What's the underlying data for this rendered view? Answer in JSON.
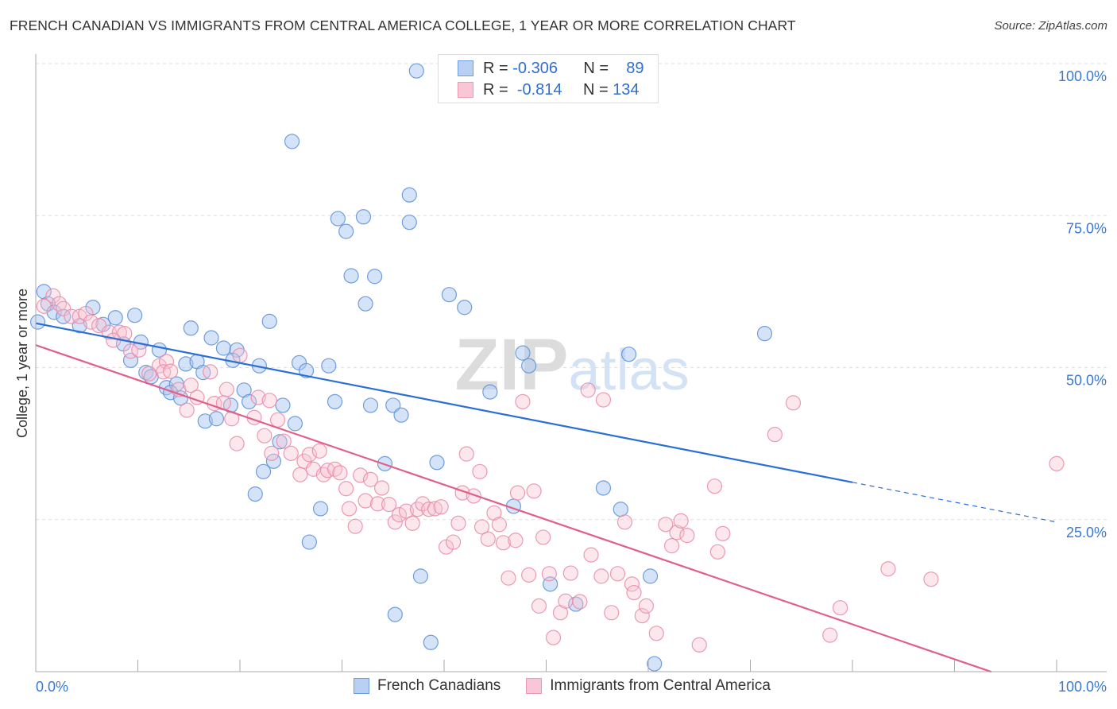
{
  "chart_data": {
    "type": "scatter",
    "title": "FRENCH CANADIAN VS IMMIGRANTS FROM CENTRAL AMERICA COLLEGE, 1 YEAR OR MORE CORRELATION CHART",
    "source": "Source: ZipAtlas.com",
    "xlabel": "",
    "ylabel": "College, 1 year or more",
    "xlim": [
      0,
      100
    ],
    "ylim": [
      0,
      100
    ],
    "x_tick_labels": [
      "0.0%",
      "100.0%"
    ],
    "y_ticks": [
      25,
      50,
      75,
      100
    ],
    "y_tick_labels": [
      "25.0%",
      "50.0%",
      "75.0%",
      "100.0%"
    ],
    "grid": true,
    "watermark": "ZIPatlas",
    "legend": {
      "placement": "top-center",
      "rows": [
        {
          "r_label": "R =",
          "r_value": "-0.306",
          "n_label": "N =",
          "n_value": "89"
        },
        {
          "r_label": "R =",
          "r_value": "-0.814",
          "n_label": "N =",
          "n_value": "134"
        }
      ]
    },
    "series": [
      {
        "name": "French Canadians",
        "color": "#5b8ed8",
        "fill": "#a9c7f0",
        "trend": {
          "intercept": 57.3,
          "slope": -0.327,
          "solid_to_x": 80,
          "dashed_to_x": 100,
          "color": "#2a6fd6"
        },
        "points": [
          [
            37.3,
            98.8
          ],
          [
            49.9,
            99.5
          ],
          [
            25.1,
            87.2
          ],
          [
            36.6,
            78.4
          ],
          [
            29.6,
            74.5
          ],
          [
            32.1,
            74.8
          ],
          [
            30.4,
            72.4
          ],
          [
            36.6,
            73.9
          ],
          [
            30.9,
            65.1
          ],
          [
            33.2,
            65.0
          ],
          [
            32.3,
            60.5
          ],
          [
            40.5,
            62.0
          ],
          [
            42.0,
            59.9
          ],
          [
            22.9,
            57.6
          ],
          [
            71.4,
            55.6
          ],
          [
            0.8,
            62.5
          ],
          [
            1.2,
            60.5
          ],
          [
            1.8,
            59.1
          ],
          [
            2.7,
            58.4
          ],
          [
            4.3,
            56.9
          ],
          [
            5.6,
            59.9
          ],
          [
            7.8,
            58.2
          ],
          [
            9.7,
            58.6
          ],
          [
            6.6,
            57.1
          ],
          [
            0.2,
            57.5
          ],
          [
            8.6,
            53.9
          ],
          [
            10.3,
            54.2
          ],
          [
            12.1,
            52.9
          ],
          [
            15.2,
            56.5
          ],
          [
            17.2,
            54.9
          ],
          [
            18.4,
            53.2
          ],
          [
            19.7,
            52.9
          ],
          [
            19.3,
            51.2
          ],
          [
            14.7,
            50.6
          ],
          [
            15.8,
            51.0
          ],
          [
            9.3,
            51.2
          ],
          [
            10.8,
            49.2
          ],
          [
            11.3,
            48.5
          ],
          [
            16.4,
            49.2
          ],
          [
            21.9,
            50.3
          ],
          [
            25.8,
            50.8
          ],
          [
            26.5,
            49.5
          ],
          [
            28.7,
            50.3
          ],
          [
            47.7,
            52.4
          ],
          [
            48.3,
            50.3
          ],
          [
            58.1,
            52.2
          ],
          [
            12.8,
            46.7
          ],
          [
            13.8,
            47.3
          ],
          [
            13.2,
            45.9
          ],
          [
            14.2,
            45.0
          ],
          [
            20.4,
            46.3
          ],
          [
            20.9,
            44.4
          ],
          [
            19.1,
            43.8
          ],
          [
            16.6,
            41.2
          ],
          [
            17.7,
            41.6
          ],
          [
            24.2,
            43.8
          ],
          [
            25.4,
            40.8
          ],
          [
            29.3,
            44.4
          ],
          [
            32.8,
            43.8
          ],
          [
            35.0,
            43.8
          ],
          [
            35.8,
            42.2
          ],
          [
            44.5,
            46.0
          ],
          [
            23.9,
            37.8
          ],
          [
            23.3,
            34.6
          ],
          [
            22.3,
            32.9
          ],
          [
            34.2,
            34.2
          ],
          [
            39.3,
            34.4
          ],
          [
            21.5,
            29.2
          ],
          [
            27.9,
            26.8
          ],
          [
            26.8,
            21.3
          ],
          [
            55.6,
            30.2
          ],
          [
            46.8,
            27.2
          ],
          [
            57.3,
            26.7
          ],
          [
            37.7,
            15.7
          ],
          [
            50.4,
            14.4
          ],
          [
            60.2,
            15.7
          ],
          [
            52.9,
            11.1
          ],
          [
            35.2,
            9.4
          ],
          [
            38.7,
            4.8
          ],
          [
            60.6,
            1.3
          ]
        ]
      },
      {
        "name": "Immigrants from Central America",
        "color": "#e88aa8",
        "fill": "#f7c3d3",
        "trend": {
          "intercept": 53.7,
          "slope": -0.574,
          "solid_to_x": 93.6,
          "color": "#e0608a"
        },
        "points": [
          [
            1.7,
            61.8
          ],
          [
            0.8,
            60.1
          ],
          [
            2.3,
            60.5
          ],
          [
            2.7,
            59.7
          ],
          [
            3.5,
            58.4
          ],
          [
            4.3,
            58.4
          ],
          [
            4.9,
            58.9
          ],
          [
            5.4,
            57.5
          ],
          [
            6.2,
            56.9
          ],
          [
            7.2,
            55.8
          ],
          [
            8.2,
            55.8
          ],
          [
            8.7,
            55.6
          ],
          [
            7.6,
            54.5
          ],
          [
            9.3,
            52.7
          ],
          [
            10.1,
            52.9
          ],
          [
            12.1,
            50.3
          ],
          [
            12.8,
            51.0
          ],
          [
            11.1,
            49.0
          ],
          [
            12.5,
            49.3
          ],
          [
            13.2,
            49.4
          ],
          [
            14.0,
            46.4
          ],
          [
            15.2,
            47.1
          ],
          [
            14.8,
            43.0
          ],
          [
            15.8,
            45.1
          ],
          [
            17.1,
            49.3
          ],
          [
            17.5,
            44.1
          ],
          [
            18.7,
            46.4
          ],
          [
            18.4,
            44.2
          ],
          [
            19.2,
            41.6
          ],
          [
            20.0,
            52.0
          ],
          [
            19.7,
            37.5
          ],
          [
            21.8,
            45.1
          ],
          [
            21.4,
            41.8
          ],
          [
            22.4,
            38.8
          ],
          [
            22.9,
            44.6
          ],
          [
            23.7,
            41.4
          ],
          [
            23.1,
            35.9
          ],
          [
            24.3,
            37.9
          ],
          [
            25.0,
            35.9
          ],
          [
            25.9,
            32.4
          ],
          [
            26.3,
            34.6
          ],
          [
            26.8,
            35.7
          ],
          [
            27.8,
            36.3
          ],
          [
            27.2,
            33.3
          ],
          [
            28.2,
            32.4
          ],
          [
            28.6,
            33.1
          ],
          [
            29.3,
            33.3
          ],
          [
            29.8,
            32.7
          ],
          [
            30.4,
            30.1
          ],
          [
            30.7,
            26.8
          ],
          [
            31.3,
            23.9
          ],
          [
            31.8,
            32.3
          ],
          [
            32.3,
            28.1
          ],
          [
            32.8,
            31.6
          ],
          [
            33.5,
            27.6
          ],
          [
            33.9,
            30.2
          ],
          [
            34.6,
            27.5
          ],
          [
            35.2,
            24.6
          ],
          [
            35.6,
            25.8
          ],
          [
            36.3,
            26.4
          ],
          [
            36.9,
            24.4
          ],
          [
            37.4,
            26.7
          ],
          [
            37.9,
            27.6
          ],
          [
            38.5,
            26.7
          ],
          [
            39.1,
            26.8
          ],
          [
            39.7,
            27.1
          ],
          [
            40.2,
            20.5
          ],
          [
            40.9,
            21.3
          ],
          [
            41.4,
            24.4
          ],
          [
            42.2,
            35.8
          ],
          [
            41.8,
            29.4
          ],
          [
            42.9,
            28.9
          ],
          [
            43.5,
            32.9
          ],
          [
            43.7,
            23.8
          ],
          [
            44.3,
            21.8
          ],
          [
            44.9,
            26.1
          ],
          [
            45.4,
            24.2
          ],
          [
            45.8,
            21.2
          ],
          [
            46.3,
            15.4
          ],
          [
            47.0,
            21.6
          ],
          [
            47.2,
            29.4
          ],
          [
            47.7,
            44.4
          ],
          [
            48.3,
            15.9
          ],
          [
            48.8,
            29.7
          ],
          [
            49.3,
            10.8
          ],
          [
            49.7,
            22.1
          ],
          [
            50.3,
            16.1
          ],
          [
            50.7,
            5.6
          ],
          [
            51.4,
            9.7
          ],
          [
            51.9,
            11.6
          ],
          [
            52.4,
            16.2
          ],
          [
            53.3,
            11.5
          ],
          [
            54.1,
            46.3
          ],
          [
            54.4,
            19.2
          ],
          [
            55.4,
            15.7
          ],
          [
            55.6,
            44.7
          ],
          [
            56.4,
            9.7
          ],
          [
            57.0,
            16.1
          ],
          [
            57.7,
            24.6
          ],
          [
            58.4,
            14.4
          ],
          [
            58.6,
            13.0
          ],
          [
            59.4,
            9.2
          ],
          [
            59.8,
            10.8
          ],
          [
            60.8,
            6.3
          ],
          [
            61.7,
            24.2
          ],
          [
            62.3,
            20.7
          ],
          [
            62.8,
            22.9
          ],
          [
            63.2,
            24.8
          ],
          [
            63.8,
            22.4
          ],
          [
            65.0,
            4.4
          ],
          [
            66.5,
            30.5
          ],
          [
            66.8,
            19.7
          ],
          [
            67.3,
            22.7
          ],
          [
            72.4,
            39.0
          ],
          [
            74.2,
            44.2
          ],
          [
            77.8,
            6.0
          ],
          [
            78.8,
            10.5
          ],
          [
            83.5,
            16.9
          ],
          [
            87.7,
            15.2
          ],
          [
            100.0,
            34.2
          ]
        ]
      }
    ]
  }
}
